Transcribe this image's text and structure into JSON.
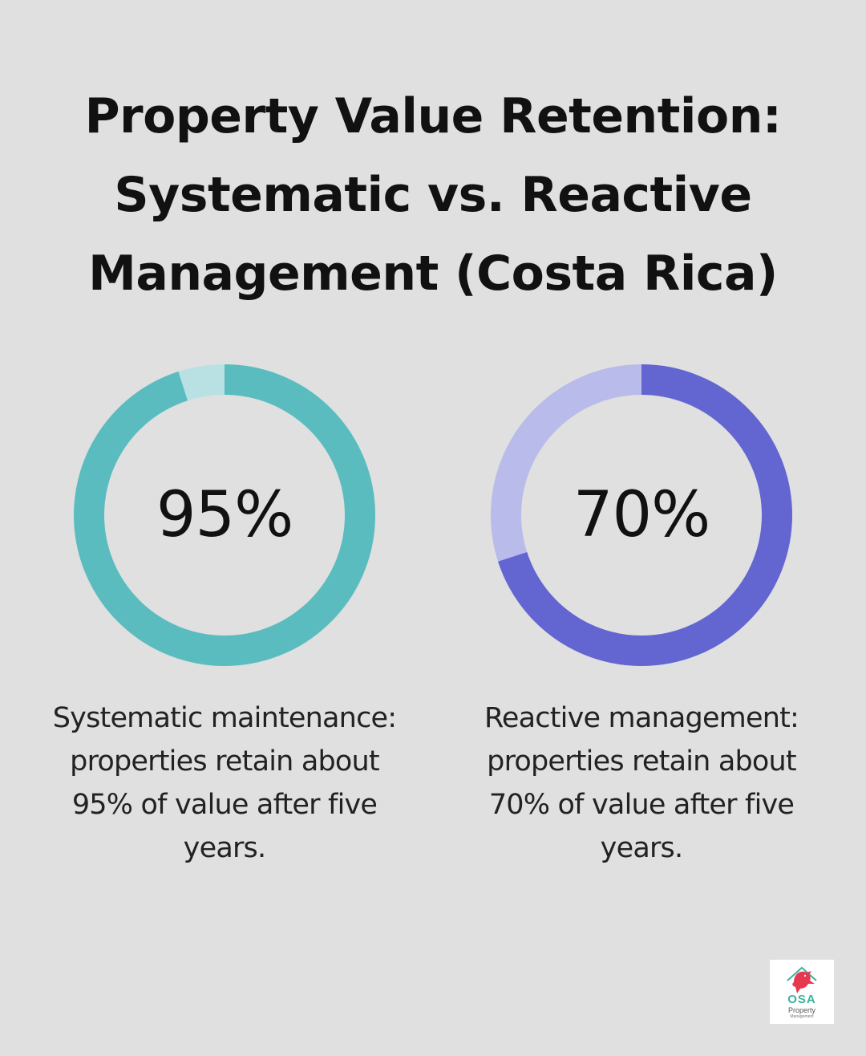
{
  "title_lines": [
    "Property Value Retention:",
    "Systematic vs. Reactive",
    "Management (Costa Rica)"
  ],
  "chart_data": [
    {
      "type": "pie",
      "value": 95,
      "label": "95%",
      "ylim": [
        0,
        100
      ],
      "colors": {
        "filled": "#5bbcbf",
        "remaining": "#b9e1e3"
      },
      "caption_lines": [
        "Systematic maintenance:",
        "properties retain about",
        "95% of value after five",
        "years."
      ]
    },
    {
      "type": "pie",
      "value": 70,
      "label": "70%",
      "ylim": [
        0,
        100
      ],
      "colors": {
        "filled": "#6366d1",
        "remaining": "#b9bbea"
      },
      "caption_lines": [
        "Reactive management:",
        "properties retain about",
        "70% of value after five",
        "years."
      ]
    }
  ],
  "logo": {
    "icon": "parrot-house-icon",
    "name": "OSA",
    "line1": "Property",
    "line2": "Management"
  }
}
